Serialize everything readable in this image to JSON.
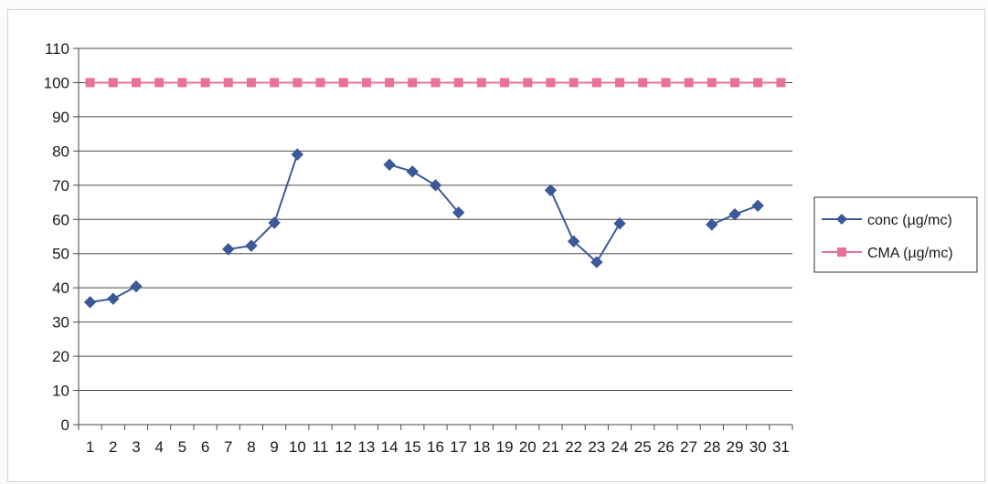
{
  "chart_data": {
    "type": "line",
    "title": "",
    "xlabel": "",
    "ylabel": "",
    "categories": [
      "1",
      "2",
      "3",
      "4",
      "5",
      "6",
      "7",
      "8",
      "9",
      "10",
      "11",
      "12",
      "13",
      "14",
      "15",
      "16",
      "17",
      "18",
      "19",
      "20",
      "21",
      "22",
      "23",
      "24",
      "25",
      "26",
      "27",
      "28",
      "29",
      "30",
      "31"
    ],
    "ylim": [
      0,
      110
    ],
    "yticks": [
      0,
      10,
      20,
      30,
      40,
      50,
      60,
      70,
      80,
      90,
      100,
      110
    ],
    "grid": true,
    "legend_position": "right",
    "series": [
      {
        "name": "conc (µg/mc)",
        "color": "#3b5998",
        "marker": "diamond",
        "values": [
          35.8,
          36.8,
          40.4,
          null,
          null,
          null,
          51.3,
          52.3,
          59,
          79,
          null,
          null,
          null,
          76,
          74,
          70,
          62,
          null,
          null,
          null,
          68.5,
          53.6,
          47.5,
          58.8,
          null,
          null,
          null,
          58.5,
          61.5,
          64,
          null
        ]
      },
      {
        "name": "CMA (µg/mc)",
        "color": "#e8709a",
        "marker": "square",
        "values": [
          100,
          100,
          100,
          100,
          100,
          100,
          100,
          100,
          100,
          100,
          100,
          100,
          100,
          100,
          100,
          100,
          100,
          100,
          100,
          100,
          100,
          100,
          100,
          100,
          100,
          100,
          100,
          100,
          100,
          100,
          100
        ]
      }
    ]
  }
}
